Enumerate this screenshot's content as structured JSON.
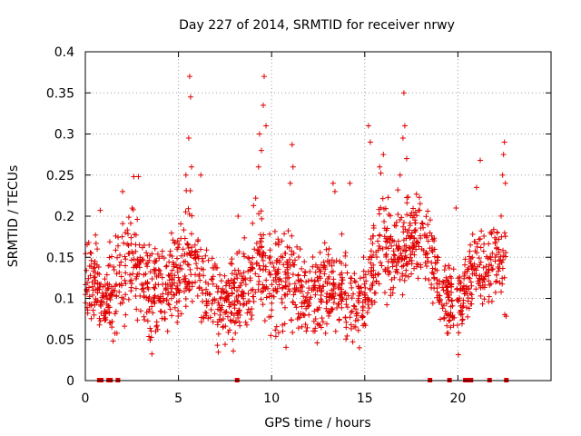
{
  "chart_data": {
    "type": "scatter",
    "title": "Day 227 of 2014, SRMTID for receiver nrwy",
    "xlabel": "GPS time / hours",
    "ylabel": "SRMTID / TECUs",
    "xlim": [
      0,
      25
    ],
    "ylim": [
      0,
      0.4
    ],
    "xticks": [
      "0",
      "5",
      "10",
      "15",
      "20"
    ],
    "yticks": [
      "0",
      "0.05",
      "0.1",
      "0.15",
      "0.2",
      "0.25",
      "0.3",
      "0.35",
      "0.4"
    ],
    "grid": true,
    "marker": "plus",
    "color": "#e00000",
    "series": [
      {
        "name": "SRMTID",
        "profile": {
          "x": [
            0.0,
            0.5,
            1.0,
            1.5,
            2.0,
            2.5,
            3.0,
            3.5,
            4.0,
            4.5,
            5.0,
            5.5,
            6.0,
            6.5,
            7.0,
            7.5,
            8.0,
            8.5,
            9.0,
            9.5,
            10.0,
            10.5,
            11.0,
            11.5,
            12.0,
            12.5,
            13.0,
            13.5,
            14.0,
            14.5,
            15.0,
            15.5,
            16.0,
            16.5,
            17.0,
            17.5,
            18.0,
            18.5,
            19.0,
            19.5,
            20.0,
            20.5,
            21.0,
            21.5,
            22.0,
            22.5
          ],
          "median": [
            0.13,
            0.12,
            0.09,
            0.11,
            0.14,
            0.15,
            0.13,
            0.1,
            0.11,
            0.12,
            0.13,
            0.16,
            0.14,
            0.11,
            0.1,
            0.09,
            0.1,
            0.11,
            0.13,
            0.14,
            0.12,
            0.13,
            0.12,
            0.11,
            0.1,
            0.11,
            0.12,
            0.11,
            0.1,
            0.09,
            0.1,
            0.15,
            0.17,
            0.15,
            0.16,
            0.17,
            0.18,
            0.16,
            0.11,
            0.1,
            0.09,
            0.12,
            0.14,
            0.13,
            0.15,
            0.14
          ],
          "spread": [
            0.04,
            0.04,
            0.03,
            0.04,
            0.05,
            0.05,
            0.05,
            0.04,
            0.04,
            0.04,
            0.05,
            0.05,
            0.05,
            0.04,
            0.04,
            0.04,
            0.04,
            0.04,
            0.05,
            0.05,
            0.05,
            0.05,
            0.04,
            0.04,
            0.04,
            0.04,
            0.04,
            0.04,
            0.04,
            0.04,
            0.04,
            0.05,
            0.05,
            0.04,
            0.04,
            0.04,
            0.04,
            0.04,
            0.04,
            0.04,
            0.04,
            0.04,
            0.05,
            0.04,
            0.04,
            0.04
          ]
        },
        "peaks": [
          {
            "x": 5.6,
            "y": 0.37
          },
          {
            "x": 5.65,
            "y": 0.345
          },
          {
            "x": 5.55,
            "y": 0.295
          },
          {
            "x": 5.7,
            "y": 0.26
          },
          {
            "x": 5.4,
            "y": 0.25
          },
          {
            "x": 6.2,
            "y": 0.25
          },
          {
            "x": 2.6,
            "y": 0.248
          },
          {
            "x": 2.85,
            "y": 0.248
          },
          {
            "x": 2.0,
            "y": 0.23
          },
          {
            "x": 9.6,
            "y": 0.37
          },
          {
            "x": 9.55,
            "y": 0.335
          },
          {
            "x": 9.7,
            "y": 0.31
          },
          {
            "x": 9.35,
            "y": 0.3
          },
          {
            "x": 9.3,
            "y": 0.26
          },
          {
            "x": 9.45,
            "y": 0.28
          },
          {
            "x": 11.1,
            "y": 0.287
          },
          {
            "x": 11.15,
            "y": 0.26
          },
          {
            "x": 11.0,
            "y": 0.24
          },
          {
            "x": 15.2,
            "y": 0.31
          },
          {
            "x": 15.3,
            "y": 0.29
          },
          {
            "x": 16.0,
            "y": 0.275
          },
          {
            "x": 17.1,
            "y": 0.35
          },
          {
            "x": 17.15,
            "y": 0.31
          },
          {
            "x": 17.05,
            "y": 0.295
          },
          {
            "x": 17.25,
            "y": 0.27
          },
          {
            "x": 16.9,
            "y": 0.25
          },
          {
            "x": 15.8,
            "y": 0.26
          },
          {
            "x": 13.4,
            "y": 0.23
          },
          {
            "x": 13.3,
            "y": 0.24
          },
          {
            "x": 14.2,
            "y": 0.24
          },
          {
            "x": 22.5,
            "y": 0.29
          },
          {
            "x": 22.45,
            "y": 0.275
          },
          {
            "x": 22.4,
            "y": 0.25
          },
          {
            "x": 22.55,
            "y": 0.24
          },
          {
            "x": 21.2,
            "y": 0.268
          },
          {
            "x": 21.0,
            "y": 0.235
          },
          {
            "x": 8.2,
            "y": 0.2
          },
          {
            "x": 0.8,
            "y": 0.207
          },
          {
            "x": 19.9,
            "y": 0.21
          }
        ],
        "zero_values_x": [
          0.75,
          0.85,
          1.25,
          1.35,
          1.75,
          8.15,
          18.5,
          19.55,
          20.4,
          20.55,
          20.7,
          21.7,
          22.6
        ]
      }
    ]
  }
}
